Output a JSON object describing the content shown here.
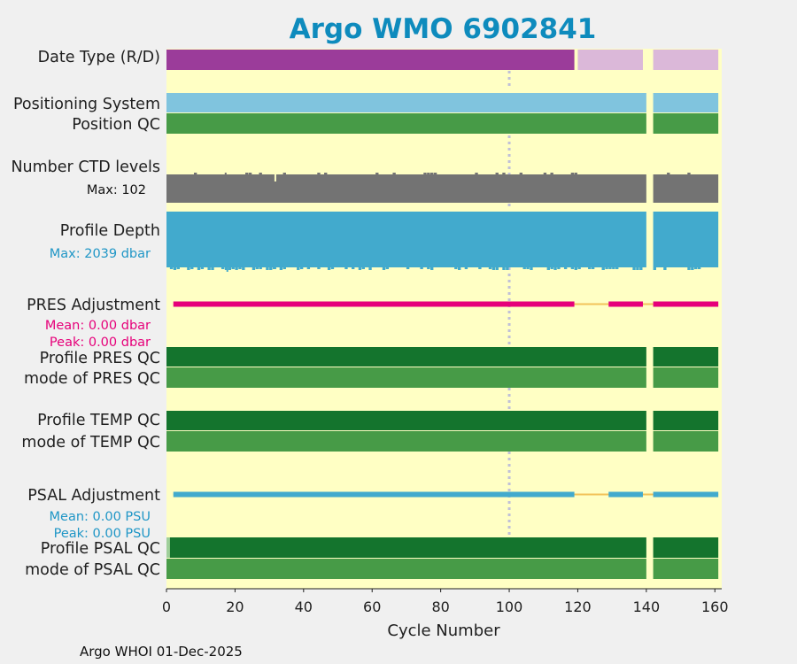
{
  "chart_data": {
    "type": "status-timeline",
    "title": "Argo WMO 6902841",
    "xlabel": "Cycle Number",
    "xlim": [
      0,
      162
    ],
    "xticks": [
      0,
      20,
      40,
      60,
      80,
      100,
      120,
      140,
      160
    ],
    "ref_line_cycle": 100,
    "gap_cycle": 141,
    "last_cycle": 161,
    "rows": [
      {
        "label": "Date Type (R/D)",
        "type": "bar",
        "segments": [
          {
            "from": 0,
            "to": 119,
            "status": "D"
          },
          {
            "from": 120,
            "to": 139,
            "status": "R"
          },
          {
            "from": 142,
            "to": 161,
            "status": "R"
          }
        ]
      },
      {
        "label": "Positioning System",
        "type": "bar",
        "segments": [
          {
            "from": 0,
            "to": 140,
            "status": "GPS"
          },
          {
            "from": 142,
            "to": 161,
            "status": "GPS"
          }
        ]
      },
      {
        "label": "Position QC",
        "type": "bar",
        "segments": [
          {
            "from": 0,
            "to": 140,
            "status": "good"
          },
          {
            "from": 142,
            "to": 161,
            "status": "good"
          }
        ]
      },
      {
        "label": "Number CTD levels",
        "sub": "Max: 102",
        "type": "levels",
        "max": 102,
        "typical": 96
      },
      {
        "label": "Profile Depth",
        "sub": "Max: 2039 dbar",
        "type": "depth",
        "max": 2039,
        "typical": 2000
      },
      {
        "label": "PRES Adjustment",
        "sub": [
          "Mean: 0.00 dbar",
          "Peak: 0.00 dbar"
        ],
        "type": "adjustment",
        "mean": 0.0,
        "peak": 0.0,
        "segments": [
          {
            "from": 2,
            "to": 119
          },
          {
            "from": 129,
            "to": 139
          },
          {
            "from": 142,
            "to": 161
          }
        ]
      },
      {
        "label": "Profile PRES QC",
        "type": "bar",
        "segments": [
          {
            "from": 0,
            "to": 140,
            "status": "A"
          },
          {
            "from": 142,
            "to": 161,
            "status": "A"
          }
        ]
      },
      {
        "label": "mode of PRES QC",
        "type": "bar",
        "segments": [
          {
            "from": 0,
            "to": 140,
            "status": "good"
          },
          {
            "from": 142,
            "to": 161,
            "status": "good"
          }
        ]
      },
      {
        "label": "Profile TEMP QC",
        "type": "bar",
        "segments": [
          {
            "from": 0,
            "to": 140,
            "status": "A"
          },
          {
            "from": 142,
            "to": 161,
            "status": "A"
          }
        ]
      },
      {
        "label": "mode of TEMP QC",
        "type": "bar",
        "segments": [
          {
            "from": 0,
            "to": 140,
            "status": "good"
          },
          {
            "from": 142,
            "to": 161,
            "status": "good"
          }
        ]
      },
      {
        "label": "PSAL Adjustment",
        "sub": [
          "Mean: 0.00 PSU",
          "Peak: 0.00 PSU"
        ],
        "type": "adjustment",
        "mean": 0.0,
        "peak": 0.0,
        "segments": [
          {
            "from": 2,
            "to": 119
          },
          {
            "from": 129,
            "to": 139
          },
          {
            "from": 142,
            "to": 161
          }
        ]
      },
      {
        "label": "Profile PSAL QC",
        "type": "bar",
        "segments": [
          {
            "from": 0,
            "to": 1,
            "status": "B"
          },
          {
            "from": 1,
            "to": 140,
            "status": "A"
          },
          {
            "from": 142,
            "to": 161,
            "status": "A"
          }
        ]
      },
      {
        "label": "mode of PSAL QC",
        "type": "bar",
        "segments": [
          {
            "from": 0,
            "to": 140,
            "status": "good"
          },
          {
            "from": 142,
            "to": 161,
            "status": "good"
          }
        ]
      }
    ]
  },
  "footer": "Argo WHOI 01-Dec-2025",
  "colors": {
    "background": "#f0f0f0",
    "plot_bg": "#ffffc4",
    "title": "#0e8bbd",
    "D": "#9b3c9a",
    "R": "#dbb8d9",
    "GPS": "#80c4de",
    "good": "#479b47",
    "A": "#14742d",
    "B": "#9fcf9a",
    "ctd": "#737373",
    "depth": "#42aacd",
    "pres": "#e6007a",
    "psal": "#42aacd",
    "connector": "#f2c35a",
    "refline": "#c0c0d8",
    "pres_text": "#e6007a",
    "psal_text": "#1f96c6"
  }
}
